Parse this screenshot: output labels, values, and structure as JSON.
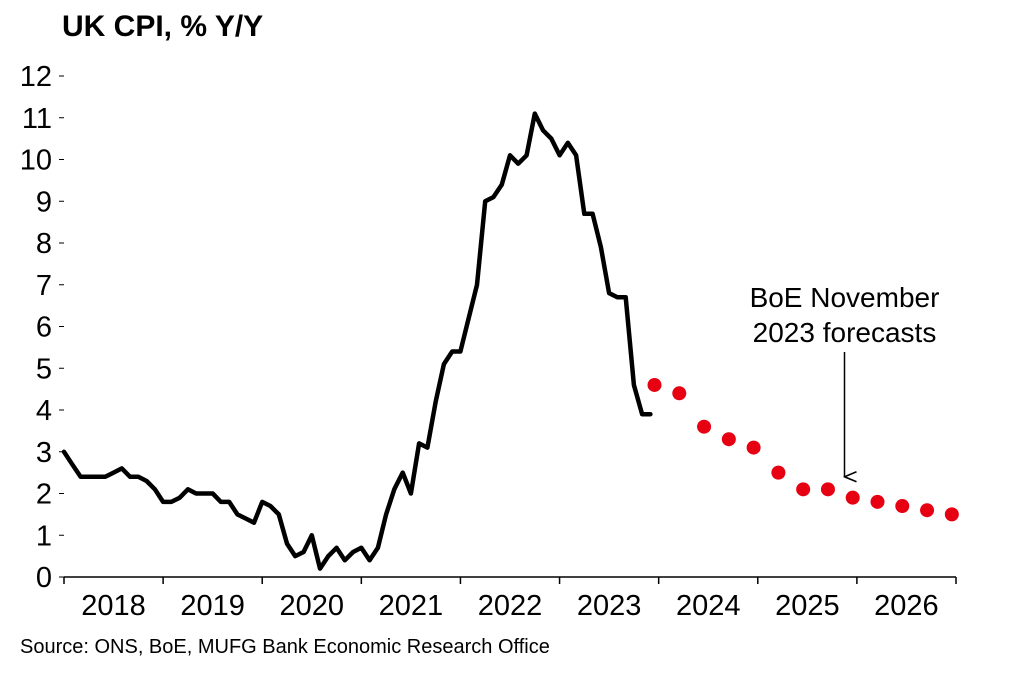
{
  "chart_data": {
    "type": "line",
    "title": "UK CPI, % Y/Y",
    "source": "Source: ONS, BoE, MUFG Bank Economic Research Office",
    "xlabel": "",
    "ylabel": "",
    "ylim": [
      0,
      12
    ],
    "xlim": [
      2018.0,
      2027.0
    ],
    "y_ticks": [
      "0",
      "1",
      "2",
      "3",
      "4",
      "5",
      "6",
      "7",
      "8",
      "9",
      "10",
      "11",
      "12"
    ],
    "x_ticks": [
      "2018",
      "2019",
      "2020",
      "2021",
      "2022",
      "2023",
      "2024",
      "2025",
      "2026"
    ],
    "grid": false,
    "series": [
      {
        "name": "UK CPI",
        "style": "line",
        "color": "#000000",
        "x": [
          2018.0,
          2018.083,
          2018.167,
          2018.25,
          2018.333,
          2018.417,
          2018.5,
          2018.583,
          2018.667,
          2018.75,
          2018.833,
          2018.917,
          2019.0,
          2019.083,
          2019.167,
          2019.25,
          2019.333,
          2019.417,
          2019.5,
          2019.583,
          2019.667,
          2019.75,
          2019.833,
          2019.917,
          2020.0,
          2020.083,
          2020.167,
          2020.25,
          2020.333,
          2020.417,
          2020.5,
          2020.583,
          2020.667,
          2020.75,
          2020.833,
          2020.917,
          2021.0,
          2021.083,
          2021.167,
          2021.25,
          2021.333,
          2021.417,
          2021.5,
          2021.583,
          2021.667,
          2021.75,
          2021.833,
          2021.917,
          2022.0,
          2022.083,
          2022.167,
          2022.25,
          2022.333,
          2022.417,
          2022.5,
          2022.583,
          2022.667,
          2022.75,
          2022.833,
          2022.917,
          2023.0,
          2023.083,
          2023.167,
          2023.25,
          2023.333,
          2023.417,
          2023.5,
          2023.583,
          2023.667,
          2023.75,
          2023.833,
          2023.917
        ],
        "values": [
          3.0,
          2.7,
          2.4,
          2.4,
          2.4,
          2.4,
          2.5,
          2.6,
          2.4,
          2.4,
          2.3,
          2.1,
          1.8,
          1.8,
          1.9,
          2.1,
          2.0,
          2.0,
          2.0,
          1.8,
          1.8,
          1.5,
          1.4,
          1.3,
          1.8,
          1.7,
          1.5,
          0.8,
          0.5,
          0.6,
          1.0,
          0.2,
          0.5,
          0.7,
          0.4,
          0.6,
          0.7,
          0.4,
          0.7,
          1.5,
          2.1,
          2.5,
          2.0,
          3.2,
          3.1,
          4.2,
          5.1,
          5.4,
          5.4,
          6.2,
          7.0,
          9.0,
          9.1,
          9.4,
          10.1,
          9.9,
          10.1,
          11.1,
          10.7,
          10.5,
          10.1,
          10.4,
          10.1,
          8.7,
          8.7,
          7.9,
          6.8,
          6.7,
          6.7,
          4.6,
          3.9,
          3.9
        ]
      },
      {
        "name": "BoE November 2023 forecasts",
        "style": "dots",
        "color": "#E60012",
        "x": [
          2023.958,
          2024.208,
          2024.458,
          2024.708,
          2024.958,
          2025.208,
          2025.458,
          2025.708,
          2025.958,
          2026.208,
          2026.458,
          2026.708,
          2026.958
        ],
        "values": [
          4.6,
          4.4,
          3.6,
          3.3,
          3.1,
          2.5,
          2.1,
          2.1,
          1.9,
          1.8,
          1.7,
          1.6,
          1.5
        ]
      }
    ],
    "annotations": [
      {
        "lines": [
          "BoE November",
          "2023 forecasts"
        ],
        "arrow_to": {
          "x": 2025.875,
          "y": 2.4
        }
      }
    ]
  }
}
